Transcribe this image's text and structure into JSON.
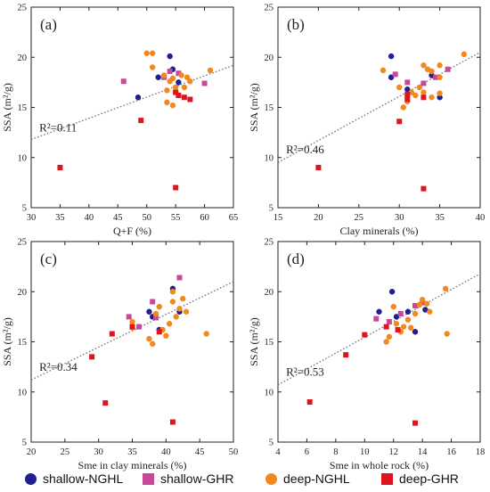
{
  "colors": {
    "shallow-NGHL": "#1f1f8f",
    "shallow-GHR": "#c8489c",
    "deep-NGHL": "#f08a1c",
    "deep-GHR": "#e0141e",
    "fit_line": "#777777"
  },
  "legend": [
    {
      "key": "shallow-NGHL",
      "label": "shallow-NGHL",
      "shape": "circle"
    },
    {
      "key": "shallow-GHR",
      "label": "shallow-GHR",
      "shape": "square"
    },
    {
      "key": "deep-NGHL",
      "label": "deep-NGHL",
      "shape": "circle"
    },
    {
      "key": "deep-GHR",
      "label": "deep-GHR",
      "shape": "square"
    }
  ],
  "chart_data": [
    {
      "type": "scatter",
      "panel_label": "(a)",
      "xlabel": "Q+F (%)",
      "ylabel": "SSA (m²/g)",
      "xlim": [
        30,
        65
      ],
      "ylim": [
        5,
        25
      ],
      "xticks": [
        30,
        35,
        40,
        45,
        50,
        55,
        60,
        65
      ],
      "yticks": [
        5,
        10,
        15,
        20,
        25
      ],
      "annotation": "R²=0.11",
      "fit_line": {
        "x": [
          30,
          65
        ],
        "y": [
          11.8,
          19.2
        ]
      },
      "series": [
        {
          "key": "shallow-NGHL",
          "points": [
            [
              48.5,
              16.0
            ],
            [
              52.0,
              18.0
            ],
            [
              54.0,
              20.1
            ],
            [
              54.5,
              18.8
            ],
            [
              55.5,
              17.5
            ]
          ]
        },
        {
          "key": "shallow-GHR",
          "points": [
            [
              46.0,
              17.6
            ],
            [
              53.0,
              18.0
            ],
            [
              54.0,
              18.6
            ],
            [
              55.5,
              18.4
            ],
            [
              60.0,
              17.4
            ]
          ]
        },
        {
          "key": "deep-NGHL",
          "points": [
            [
              50.0,
              20.4
            ],
            [
              51.0,
              20.4
            ],
            [
              51.0,
              19.0
            ],
            [
              53.0,
              18.2
            ],
            [
              53.5,
              16.7
            ],
            [
              54.0,
              17.6
            ],
            [
              54.5,
              17.9
            ],
            [
              55.0,
              17.0
            ],
            [
              55.5,
              16.2
            ],
            [
              56.0,
              18.2
            ],
            [
              56.5,
              17.0
            ],
            [
              57.0,
              18.0
            ],
            [
              57.5,
              17.6
            ],
            [
              53.5,
              15.5
            ],
            [
              54.5,
              15.2
            ],
            [
              55.0,
              16.6
            ],
            [
              61.0,
              18.7
            ]
          ]
        },
        {
          "key": "deep-GHR",
          "points": [
            [
              35.0,
              9.0
            ],
            [
              49.0,
              13.7
            ],
            [
              55.0,
              7.0
            ],
            [
              55.5,
              16.2
            ],
            [
              56.5,
              16.0
            ],
            [
              57.5,
              15.8
            ],
            [
              55.0,
              16.5
            ]
          ]
        }
      ]
    },
    {
      "type": "scatter",
      "panel_label": "(b)",
      "xlabel": "Clay minerals (%)",
      "ylabel": "SSA (m²/g)",
      "xlim": [
        15,
        40
      ],
      "ylim": [
        5,
        25
      ],
      "xticks": [
        15,
        20,
        25,
        30,
        35,
        40
      ],
      "yticks": [
        5,
        10,
        15,
        20,
        25
      ],
      "annotation": "R²=0.46",
      "fit_line": {
        "x": [
          15,
          40
        ],
        "y": [
          9.5,
          20.5
        ]
      },
      "series": [
        {
          "key": "shallow-NGHL",
          "points": [
            [
              29.0,
              20.1
            ],
            [
              29.0,
              18.0
            ],
            [
              31.0,
              16.8
            ],
            [
              34.0,
              18.2
            ],
            [
              35.0,
              16.0
            ]
          ]
        },
        {
          "key": "shallow-GHR",
          "points": [
            [
              29.5,
              18.3
            ],
            [
              31.0,
              17.5
            ],
            [
              33.0,
              17.4
            ],
            [
              34.5,
              18.0
            ],
            [
              36.0,
              18.8
            ]
          ]
        },
        {
          "key": "deep-NGHL",
          "points": [
            [
              28.0,
              18.7
            ],
            [
              30.0,
              17.0
            ],
            [
              30.5,
              15.0
            ],
            [
              31.0,
              15.6
            ],
            [
              31.5,
              16.5
            ],
            [
              32.0,
              16.2
            ],
            [
              32.5,
              17.0
            ],
            [
              33.0,
              19.2
            ],
            [
              33.0,
              16.5
            ],
            [
              33.5,
              18.8
            ],
            [
              34.0,
              16.0
            ],
            [
              34.0,
              18.6
            ],
            [
              35.0,
              19.2
            ],
            [
              35.0,
              18.0
            ],
            [
              35.0,
              16.4
            ],
            [
              38.0,
              20.3
            ]
          ]
        },
        {
          "key": "deep-GHR",
          "points": [
            [
              20.0,
              9.0
            ],
            [
              30.0,
              13.6
            ],
            [
              33.0,
              6.9
            ],
            [
              31.0,
              15.8
            ],
            [
              31.0,
              16.3
            ],
            [
              33.0,
              16.0
            ]
          ]
        }
      ]
    },
    {
      "type": "scatter",
      "panel_label": "(c)",
      "xlabel": "Sme in clay minerals (%)",
      "ylabel": "SSA (m²/g)",
      "xlim": [
        20,
        50
      ],
      "ylim": [
        5,
        25
      ],
      "xticks": [
        20,
        25,
        30,
        35,
        40,
        45,
        50
      ],
      "yticks": [
        5,
        10,
        15,
        20,
        25
      ],
      "annotation": "R²=0.34",
      "fit_line": {
        "x": [
          20,
          50
        ],
        "y": [
          11.2,
          21.0
        ]
      },
      "series": [
        {
          "key": "shallow-NGHL",
          "points": [
            [
              37.5,
              18.0
            ],
            [
              38.0,
              17.5
            ],
            [
              39.0,
              16.2
            ],
            [
              41.0,
              20.3
            ],
            [
              42.0,
              18.0
            ]
          ]
        },
        {
          "key": "shallow-GHR",
          "points": [
            [
              34.5,
              17.5
            ],
            [
              36.0,
              16.5
            ],
            [
              38.0,
              19.0
            ],
            [
              38.5,
              17.4
            ],
            [
              42.0,
              21.4
            ]
          ]
        },
        {
          "key": "deep-NGHL",
          "points": [
            [
              35.0,
              17.0
            ],
            [
              35.0,
              16.4
            ],
            [
              37.5,
              15.3
            ],
            [
              38.0,
              14.8
            ],
            [
              38.5,
              17.8
            ],
            [
              39.0,
              18.5
            ],
            [
              39.5,
              16.2
            ],
            [
              40.0,
              15.6
            ],
            [
              40.5,
              16.8
            ],
            [
              41.0,
              19.0
            ],
            [
              41.0,
              20.0
            ],
            [
              41.5,
              17.5
            ],
            [
              42.0,
              18.3
            ],
            [
              42.5,
              19.3
            ],
            [
              43.0,
              18.0
            ],
            [
              46.0,
              15.8
            ]
          ]
        },
        {
          "key": "deep-GHR",
          "points": [
            [
              29.0,
              13.5
            ],
            [
              31.0,
              8.9
            ],
            [
              32.0,
              15.8
            ],
            [
              35.0,
              16.5
            ],
            [
              39.0,
              16.0
            ],
            [
              41.0,
              7.0
            ]
          ]
        }
      ]
    },
    {
      "type": "scatter",
      "panel_label": "(d)",
      "xlabel": "Sme in whole rock (%)",
      "ylabel": "SSA (m²/g)",
      "xlim": [
        4,
        18
      ],
      "ylim": [
        5,
        25
      ],
      "xticks": [
        4,
        6,
        8,
        10,
        12,
        14,
        16,
        18
      ],
      "yticks": [
        5,
        10,
        15,
        20,
        25
      ],
      "annotation": "R²=0.53",
      "fit_line": {
        "x": [
          4,
          18
        ],
        "y": [
          10.7,
          21.8
        ]
      },
      "series": [
        {
          "key": "shallow-NGHL",
          "points": [
            [
              11.0,
              18.0
            ],
            [
              11.9,
              20.0
            ],
            [
              12.2,
              17.5
            ],
            [
              13.0,
              18.0
            ],
            [
              13.5,
              16.0
            ],
            [
              14.2,
              18.2
            ]
          ]
        },
        {
          "key": "shallow-GHR",
          "points": [
            [
              10.8,
              17.3
            ],
            [
              11.7,
              17.0
            ],
            [
              12.5,
              17.8
            ],
            [
              13.5,
              18.6
            ],
            [
              14.0,
              18.9
            ]
          ]
        },
        {
          "key": "deep-NGHL",
          "points": [
            [
              11.5,
              15.0
            ],
            [
              11.7,
              15.5
            ],
            [
              12.0,
              18.5
            ],
            [
              12.2,
              16.8
            ],
            [
              12.5,
              16.0
            ],
            [
              12.7,
              16.5
            ],
            [
              13.0,
              17.2
            ],
            [
              13.2,
              16.4
            ],
            [
              13.5,
              17.8
            ],
            [
              13.8,
              18.7
            ],
            [
              14.0,
              19.2
            ],
            [
              14.3,
              18.8
            ],
            [
              14.5,
              18.0
            ],
            [
              15.6,
              20.3
            ],
            [
              15.7,
              15.8
            ]
          ]
        },
        {
          "key": "deep-GHR",
          "points": [
            [
              6.2,
              9.0
            ],
            [
              8.7,
              13.7
            ],
            [
              10.0,
              15.7
            ],
            [
              11.5,
              16.5
            ],
            [
              12.3,
              16.2
            ],
            [
              13.5,
              6.9
            ]
          ]
        }
      ]
    }
  ]
}
